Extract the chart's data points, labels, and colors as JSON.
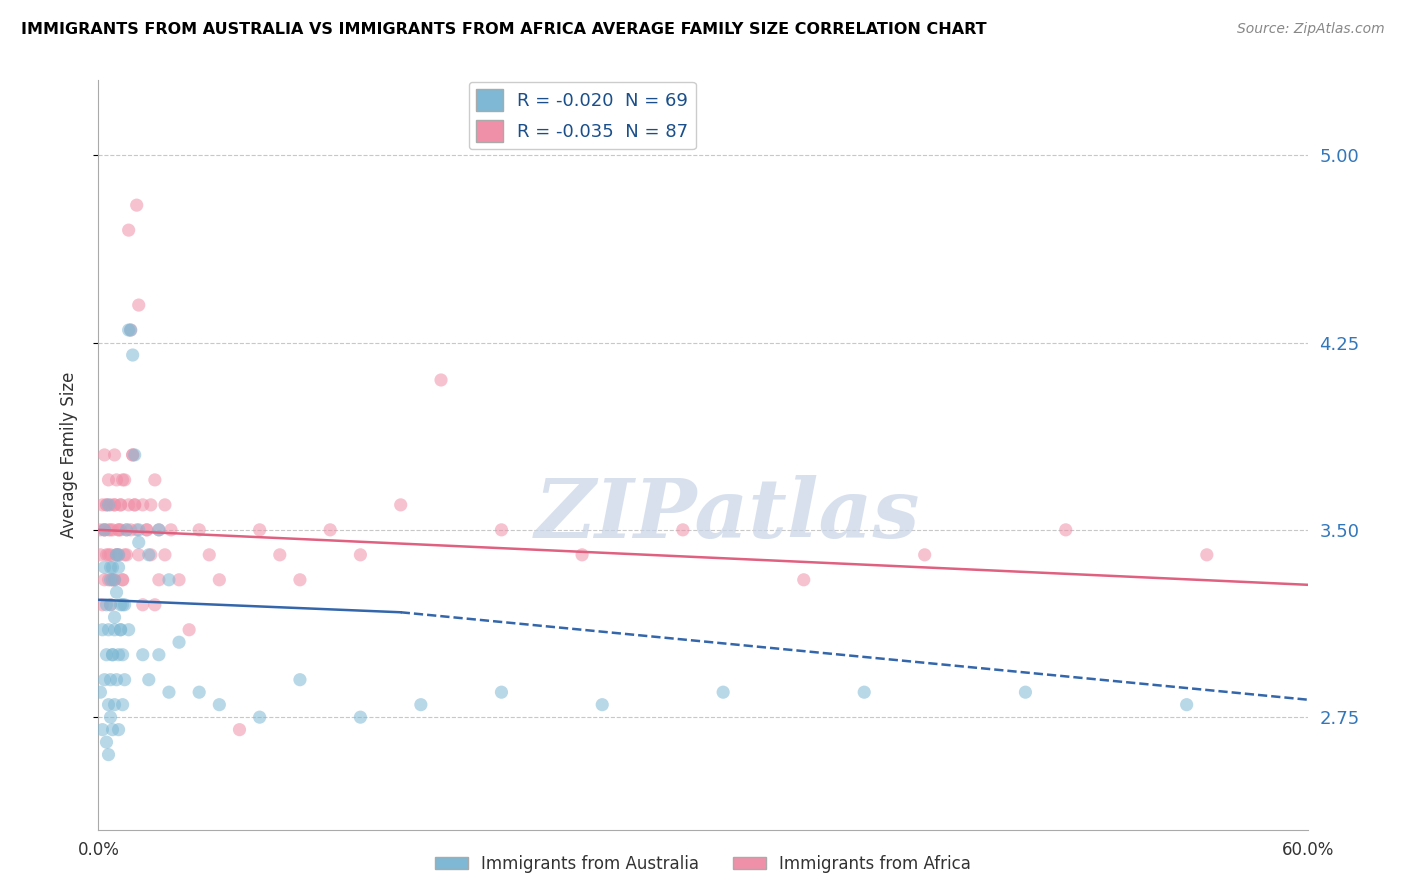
{
  "title": "IMMIGRANTS FROM AUSTRALIA VS IMMIGRANTS FROM AFRICA AVERAGE FAMILY SIZE CORRELATION CHART",
  "source": "Source: ZipAtlas.com",
  "ylabel": "Average Family Size",
  "xlabel_bottom_left": "0.0%",
  "xlabel_bottom_right": "60.0%",
  "legend_entries": [
    {
      "label": "R = -0.020  N = 69",
      "color": "#a8c4e0"
    },
    {
      "label": "R = -0.035  N = 87",
      "color": "#f4b8c8"
    }
  ],
  "legend_label_australia": "Immigrants from Australia",
  "legend_label_africa": "Immigrants from Africa",
  "yticks": [
    2.75,
    3.5,
    4.25,
    5.0
  ],
  "xlim": [
    0.0,
    0.6
  ],
  "ylim": [
    2.3,
    5.3
  ],
  "background_color": "#ffffff",
  "grid_color": "#c8c8c8",
  "title_color": "#000000",
  "source_color": "#888888",
  "australia_color": "#7eb8d4",
  "africa_color": "#f090a8",
  "australia_line_color": "#3366aa",
  "africa_line_color": "#e06080",
  "regression_text_color": "#1a4f8a",
  "watermark_color": "#c8d4e8",
  "australia_scatter": {
    "x": [
      0.001,
      0.002,
      0.002,
      0.003,
      0.003,
      0.004,
      0.004,
      0.005,
      0.005,
      0.005,
      0.006,
      0.006,
      0.006,
      0.007,
      0.007,
      0.007,
      0.008,
      0.008,
      0.008,
      0.009,
      0.009,
      0.01,
      0.01,
      0.01,
      0.011,
      0.011,
      0.012,
      0.012,
      0.013,
      0.013,
      0.014,
      0.015,
      0.016,
      0.017,
      0.018,
      0.02,
      0.022,
      0.025,
      0.03,
      0.035,
      0.04,
      0.05,
      0.06,
      0.08,
      0.1,
      0.13,
      0.16,
      0.2,
      0.25,
      0.31,
      0.38,
      0.46,
      0.54,
      0.006,
      0.007,
      0.008,
      0.009,
      0.01,
      0.011,
      0.012,
      0.003,
      0.004,
      0.005,
      0.006,
      0.015,
      0.02,
      0.025,
      0.03,
      0.035
    ],
    "y": [
      2.85,
      3.1,
      2.7,
      3.35,
      2.9,
      3.0,
      2.65,
      2.8,
      3.1,
      2.6,
      3.2,
      2.9,
      2.75,
      3.0,
      3.35,
      2.7,
      3.1,
      2.8,
      3.3,
      3.4,
      2.9,
      3.0,
      3.35,
      2.7,
      3.1,
      3.2,
      3.0,
      2.8,
      2.9,
      3.2,
      3.5,
      4.3,
      4.3,
      4.2,
      3.8,
      3.5,
      3.0,
      2.9,
      3.0,
      2.85,
      3.05,
      2.85,
      2.8,
      2.75,
      2.9,
      2.75,
      2.8,
      2.85,
      2.8,
      2.85,
      2.85,
      2.85,
      2.8,
      3.35,
      3.0,
      3.15,
      3.25,
      3.4,
      3.1,
      3.2,
      3.5,
      3.2,
      3.6,
      3.3,
      3.1,
      3.45,
      3.4,
      3.5,
      3.3
    ]
  },
  "africa_scatter": {
    "x": [
      0.001,
      0.001,
      0.002,
      0.002,
      0.003,
      0.003,
      0.003,
      0.004,
      0.004,
      0.005,
      0.005,
      0.005,
      0.006,
      0.006,
      0.006,
      0.007,
      0.007,
      0.008,
      0.008,
      0.008,
      0.009,
      0.009,
      0.01,
      0.01,
      0.011,
      0.011,
      0.012,
      0.012,
      0.013,
      0.014,
      0.015,
      0.016,
      0.017,
      0.018,
      0.019,
      0.02,
      0.022,
      0.024,
      0.026,
      0.028,
      0.03,
      0.033,
      0.036,
      0.04,
      0.045,
      0.05,
      0.055,
      0.06,
      0.07,
      0.08,
      0.09,
      0.1,
      0.115,
      0.13,
      0.15,
      0.17,
      0.2,
      0.24,
      0.29,
      0.35,
      0.41,
      0.48,
      0.55,
      0.003,
      0.004,
      0.005,
      0.006,
      0.007,
      0.008,
      0.009,
      0.01,
      0.011,
      0.012,
      0.013,
      0.014,
      0.015,
      0.016,
      0.017,
      0.018,
      0.019,
      0.02,
      0.022,
      0.024,
      0.026,
      0.028,
      0.03,
      0.033
    ],
    "y": [
      3.4,
      3.5,
      3.2,
      3.6,
      3.5,
      3.3,
      3.8,
      3.6,
      3.4,
      3.5,
      3.3,
      3.7,
      3.6,
      3.2,
      3.4,
      3.5,
      3.3,
      3.6,
      3.3,
      3.8,
      3.7,
      3.4,
      3.5,
      3.4,
      3.6,
      3.5,
      3.3,
      3.7,
      3.4,
      3.5,
      4.7,
      4.3,
      3.8,
      3.6,
      3.5,
      3.4,
      3.2,
      3.5,
      3.6,
      3.7,
      3.3,
      3.4,
      3.5,
      3.3,
      3.1,
      3.5,
      3.4,
      3.3,
      2.7,
      3.5,
      3.4,
      3.3,
      3.5,
      3.4,
      3.6,
      4.1,
      3.5,
      3.4,
      3.5,
      3.3,
      3.4,
      3.5,
      3.4,
      3.5,
      3.6,
      3.4,
      3.5,
      3.3,
      3.6,
      3.4,
      3.5,
      3.6,
      3.3,
      3.7,
      3.4,
      3.6,
      3.5,
      3.8,
      3.6,
      4.8,
      4.4,
      3.6,
      3.5,
      3.4,
      3.2,
      3.5,
      3.6
    ]
  },
  "australia_regression_solid": {
    "x": [
      0.0,
      0.15
    ],
    "y": [
      3.22,
      3.17
    ]
  },
  "australia_regression_dashed": {
    "x": [
      0.15,
      0.6
    ],
    "y": [
      3.17,
      2.82
    ]
  },
  "africa_regression": {
    "x": [
      0.0,
      0.6
    ],
    "y": [
      3.5,
      3.28
    ]
  }
}
